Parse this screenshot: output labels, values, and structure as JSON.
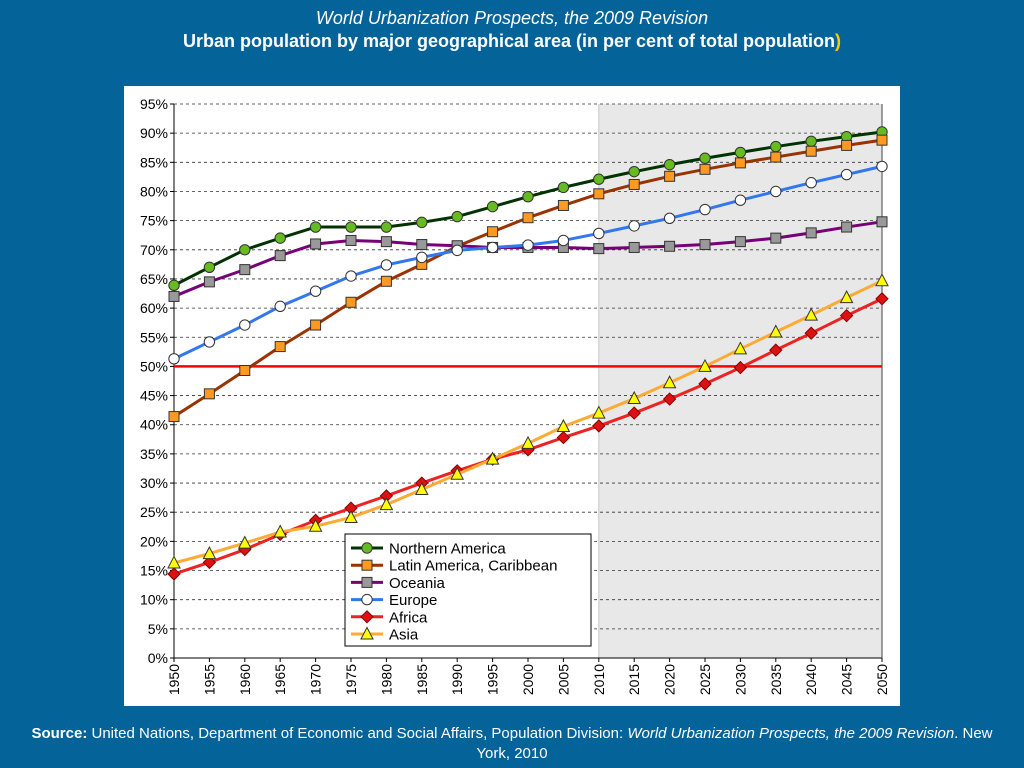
{
  "header": {
    "title": "World Urbanization Prospects, the 2009 Revision",
    "subtitle": "Urban population by major geographical area (in per cent of total population",
    "subtitle_paren": ")"
  },
  "source": {
    "label": "Source:",
    "text": " United Nations, Department of Economic and Social Affairs, Population Division: ",
    "publication": "World Urbanization Prospects, the 2009 Revision",
    "tail": ". New York, 2010"
  },
  "chart_data": {
    "type": "line",
    "x": [
      1950,
      1955,
      1960,
      1965,
      1970,
      1975,
      1980,
      1985,
      1990,
      1995,
      2000,
      2005,
      2010,
      2015,
      2020,
      2025,
      2030,
      2035,
      2040,
      2045,
      2050
    ],
    "xlim": [
      1950,
      2050
    ],
    "ylim": [
      0,
      95
    ],
    "yticks": [
      0,
      5,
      10,
      15,
      20,
      25,
      30,
      35,
      40,
      45,
      50,
      55,
      60,
      65,
      70,
      75,
      80,
      85,
      90,
      95
    ],
    "ytick_suffix": "%",
    "grid": true,
    "projection_shading_from": 2010,
    "reference_line": {
      "y": 50,
      "color": "#ff0000"
    },
    "legend_position": "bottom-center",
    "series": [
      {
        "name": "Northern America",
        "color": "#003300",
        "marker": "circle",
        "marker_fill": "#66bb22",
        "values": [
          63.9,
          67.0,
          70.0,
          72.0,
          73.9,
          73.9,
          73.9,
          74.7,
          75.7,
          77.4,
          79.1,
          80.7,
          82.1,
          83.4,
          84.6,
          85.7,
          86.7,
          87.7,
          88.6,
          89.4,
          90.2
        ]
      },
      {
        "name": "Latin America, Caribbean",
        "color": "#993300",
        "marker": "square",
        "marker_fill": "#ff9922",
        "values": [
          41.4,
          45.3,
          49.3,
          53.4,
          57.1,
          61.0,
          64.6,
          67.5,
          70.6,
          73.1,
          75.5,
          77.6,
          79.6,
          81.2,
          82.6,
          83.8,
          84.9,
          85.9,
          86.9,
          87.9,
          88.8
        ]
      },
      {
        "name": "Oceania",
        "color": "#770077",
        "marker": "square",
        "marker_fill": "#999999",
        "values": [
          62.0,
          64.5,
          66.6,
          69.0,
          71.0,
          71.6,
          71.4,
          70.9,
          70.7,
          70.4,
          70.4,
          70.4,
          70.2,
          70.4,
          70.6,
          70.9,
          71.4,
          72.0,
          72.9,
          73.9,
          74.8
        ]
      },
      {
        "name": "Europe",
        "color": "#3377ee",
        "marker": "circle",
        "marker_fill": "#ffffff",
        "values": [
          51.3,
          54.2,
          57.1,
          60.3,
          62.9,
          65.5,
          67.4,
          68.7,
          69.9,
          70.4,
          70.8,
          71.6,
          72.8,
          74.1,
          75.4,
          76.9,
          78.5,
          80.0,
          81.5,
          82.9,
          84.3
        ]
      },
      {
        "name": "Africa",
        "color": "#ee2222",
        "marker": "diamond",
        "marker_fill": "#dd1111",
        "values": [
          14.4,
          16.4,
          18.6,
          21.2,
          23.6,
          25.7,
          27.8,
          30.0,
          32.1,
          34.1,
          35.7,
          37.8,
          39.8,
          42.0,
          44.4,
          47.0,
          49.8,
          52.8,
          55.7,
          58.7,
          61.6
        ]
      },
      {
        "name": "Asia",
        "color": "#ffaa33",
        "marker": "triangle",
        "marker_fill": "#ffff00",
        "values": [
          16.3,
          17.9,
          19.7,
          21.6,
          22.6,
          24.1,
          26.3,
          28.9,
          31.5,
          34.1,
          36.8,
          39.7,
          42.0,
          44.5,
          47.2,
          50.0,
          53.0,
          55.9,
          58.8,
          61.8,
          64.7
        ]
      }
    ]
  }
}
